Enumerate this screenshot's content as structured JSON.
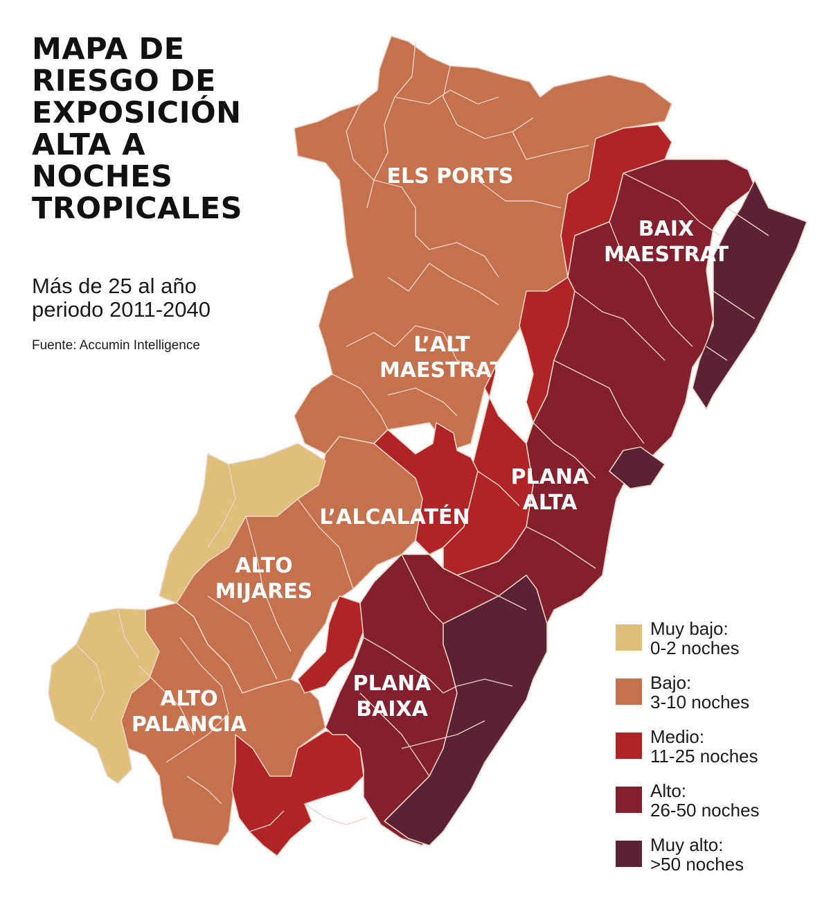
{
  "title": [
    "MAPA DE",
    "RIESGO DE",
    "EXPOSICIÓN",
    "ALTA A",
    "NOCHES",
    "TROPICALES"
  ],
  "subtitle": [
    "Más de 25 al año",
    "periodo 2011-2040"
  ],
  "source": "Fuente: Accumin Intelligence",
  "colors": {
    "muy_bajo": "#dfc07a",
    "bajo": "#c6714d",
    "medio": "#b02326",
    "alto": "#84202e",
    "muy_alto": "#5a2234",
    "border": "#ead2c2"
  },
  "regions": [
    {
      "name": "Els Ports",
      "label": [
        "ELS PORTS"
      ]
    },
    {
      "name": "Baix Maestrat",
      "label": [
        "BAIX",
        "MAESTRAT"
      ]
    },
    {
      "name": "L'Alt Maestrat",
      "label": [
        "L’ALT",
        "MAESTRAT"
      ]
    },
    {
      "name": "L'Alcalatén",
      "label": [
        "L’ALCALATÉN"
      ]
    },
    {
      "name": "Plana Alta",
      "label": [
        "PLANA",
        "ALTA"
      ]
    },
    {
      "name": "Alto Mijares",
      "label": [
        "ALTO",
        "MIJARES"
      ]
    },
    {
      "name": "Alto Palancia",
      "label": [
        "ALTO",
        "PALANCIA"
      ]
    },
    {
      "name": "Plana Baixa",
      "label": [
        "PLANA",
        "BAIXA"
      ]
    }
  ],
  "legend": [
    {
      "key": "muy_bajo",
      "line1": "Muy bajo:",
      "line2": "0-2 noches"
    },
    {
      "key": "bajo",
      "line1": "Bajo:",
      "line2": "3-10 noches"
    },
    {
      "key": "medio",
      "line1": "Medio:",
      "line2": "11-25 noches"
    },
    {
      "key": "alto",
      "line1": "Alto:",
      "line2": "26-50 noches"
    },
    {
      "key": "muy_alto",
      "line1": "Muy alto:",
      "line2": ">50 noches"
    }
  ]
}
